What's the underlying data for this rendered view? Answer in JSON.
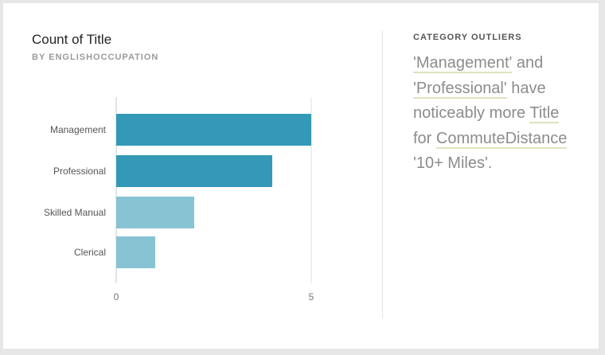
{
  "chart_data": {
    "type": "bar",
    "orientation": "horizontal",
    "title": "Count of Title",
    "subtitle": "BY ENGLISHOCCUPATION",
    "categories": [
      "Management",
      "Professional",
      "Skilled Manual",
      "Clerical"
    ],
    "values": [
      5,
      4,
      2,
      1
    ],
    "xlim": [
      0,
      5
    ],
    "xticks": [
      0,
      5
    ],
    "grid": true,
    "highlighted": [
      true,
      true,
      false,
      false
    ],
    "colors": {
      "highlight": "#3399b6",
      "normal": "#88c3d4"
    }
  },
  "insight": {
    "heading": "CATEGORY OUTLIERS",
    "parts": [
      {
        "text": "'Management'",
        "hl": true
      },
      {
        "text": " and ",
        "hl": false
      },
      {
        "text": "'Professional'",
        "hl": true
      },
      {
        "text": " have noticeably more ",
        "hl": false
      },
      {
        "text": "Title",
        "hl": true
      },
      {
        "text": " for ",
        "hl": false
      },
      {
        "text": "CommuteDistance",
        "hl": true
      },
      {
        "text": " '10+ Miles'.",
        "hl": false
      }
    ]
  }
}
